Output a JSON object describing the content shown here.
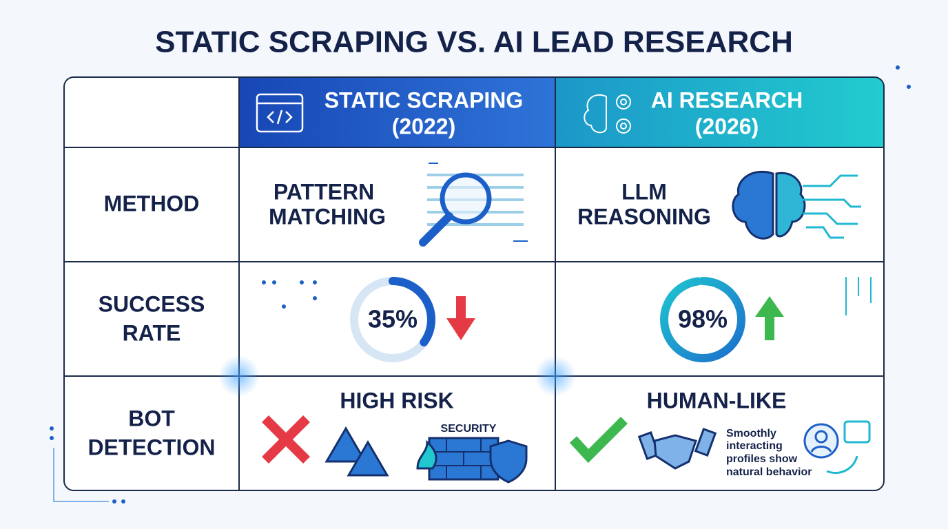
{
  "title": "STATIC SCRAPING VS. AI LEAD RESEARCH",
  "table": {
    "columns": [
      {
        "title": "STATIC SCRAPING",
        "subtitle": "(2022)"
      },
      {
        "title": "AI RESEARCH",
        "subtitle": "(2026)"
      }
    ],
    "rows": [
      {
        "label": [
          "METHOD"
        ],
        "cells": [
          {
            "text": [
              "PATTERN",
              "MATCHING"
            ]
          },
          {
            "text": [
              "LLM",
              "REASONING"
            ]
          }
        ]
      },
      {
        "label": [
          "SUCCESS",
          "RATE"
        ],
        "range": [
          0,
          100
        ],
        "cells": [
          {
            "value": 35,
            "label": "35%"
          },
          {
            "value": 98,
            "label": "98%"
          }
        ]
      },
      {
        "label": [
          "BOT",
          "DETECTION"
        ],
        "cells": [
          {
            "text": [
              "HIGH RISK"
            ],
            "badge": "SECURITY"
          },
          {
            "text": [
              "HUMAN-LIKE"
            ],
            "note": [
              "Smoothly",
              "interacting",
              "profiles show",
              "natural behavior"
            ]
          }
        ]
      }
    ]
  }
}
